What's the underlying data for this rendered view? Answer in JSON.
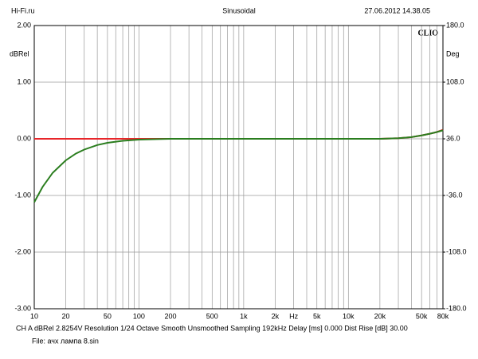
{
  "chart_data": {
    "type": "line",
    "header_left": "Hi-Fi.ru",
    "title": "Sinusoidal",
    "header_right": "27.06.2012 14.38.05",
    "ylabel": "dBRel",
    "y2label": "Deg",
    "brand": "CLIO",
    "footer": "CH A   dBRel 2.8254V   Resolution 1/24 Octave   Smooth Unsmoothed   Sampling 192kHz   Delay [ms] 0.000   Dist Rise [dB] 30.00",
    "file": "File: ачх лампа 8.sin",
    "log_x": true,
    "grid": true,
    "xlim": [
      10,
      80000
    ],
    "xticks": [
      10,
      20,
      50,
      100,
      200,
      500,
      {
        "value": 1000,
        "label": "1k"
      },
      {
        "value": 2000,
        "label": "2k"
      },
      {
        "value": 3000,
        "label": "Hz"
      },
      {
        "value": 5000,
        "label": "5k"
      },
      {
        "value": 10000,
        "label": "10k"
      },
      {
        "value": 20000,
        "label": "20k"
      },
      {
        "value": 50000,
        "label": "50k"
      },
      {
        "value": 80000,
        "label": "80k"
      }
    ],
    "x_minor_grid": [
      30,
      40,
      60,
      70,
      80,
      90,
      300,
      400,
      600,
      700,
      800,
      900,
      4000,
      6000,
      7000,
      8000,
      9000,
      30000,
      40000,
      60000,
      70000
    ],
    "ylim": [
      -3,
      2
    ],
    "yticks": [
      {
        "value": 2,
        "label": "2.00"
      },
      {
        "value": 1,
        "label": "1.00"
      },
      {
        "value": 0,
        "label": "0.00"
      },
      {
        "value": -1,
        "label": "-1.00"
      },
      {
        "value": -2,
        "label": "-2.00"
      },
      {
        "value": -3,
        "label": "-3.00"
      }
    ],
    "y2lim": [
      -180,
      180
    ],
    "y2ticks": [
      {
        "value": 180,
        "label": "180.0"
      },
      {
        "value": 108,
        "label": "108.0"
      },
      {
        "value": 36,
        "label": "36.0"
      },
      {
        "value": -36,
        "label": "-36.0"
      },
      {
        "value": -108,
        "label": "-108.0"
      },
      {
        "value": -180,
        "label": "-180.0"
      }
    ],
    "x": [
      10,
      12,
      15,
      20,
      25,
      30,
      40,
      50,
      70,
      100,
      150,
      200,
      500,
      1000,
      2000,
      5000,
      10000,
      20000,
      30000,
      40000,
      50000,
      60000,
      70000,
      80000
    ],
    "series": [
      {
        "color": "#e8262a",
        "values": [
          0,
          0,
          0,
          0,
          0,
          0,
          0,
          0,
          0,
          0,
          0,
          0,
          0,
          0,
          0,
          0,
          0,
          0,
          0.01,
          0.03,
          0.06,
          0.09,
          0.12,
          0.16
        ]
      },
      {
        "color": "#2a7d1e",
        "values": [
          -1.12,
          -0.85,
          -0.6,
          -0.38,
          -0.26,
          -0.19,
          -0.11,
          -0.07,
          -0.035,
          -0.015,
          -0.005,
          0,
          0,
          0,
          0,
          0,
          0,
          0,
          0.01,
          0.03,
          0.06,
          0.09,
          0.12,
          0.15
        ]
      }
    ]
  }
}
